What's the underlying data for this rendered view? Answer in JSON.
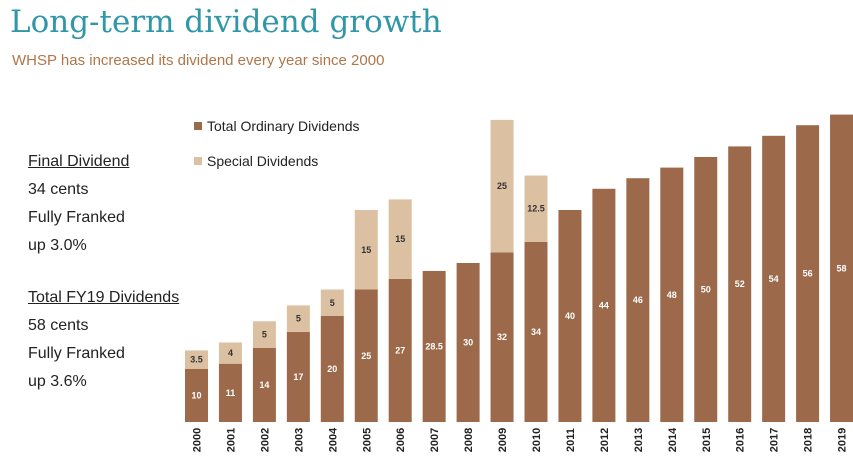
{
  "header": {
    "title": "Long-term dividend growth",
    "subtitle": "WHSP has increased its dividend every year since 2000"
  },
  "summary": {
    "final": {
      "heading": "Final Dividend",
      "lines": [
        "34 cents",
        "Fully Franked",
        "up 3.0%"
      ]
    },
    "total": {
      "heading": "Total FY19 Dividends",
      "lines": [
        "58 cents",
        "Fully Franked",
        "up 3.6%"
      ]
    }
  },
  "colors": {
    "ordinary": "#9c6a4a",
    "special": "#dcc0a2"
  },
  "chart_data": {
    "type": "bar",
    "stacked": true,
    "categories": [
      "2000",
      "2001",
      "2002",
      "2003",
      "2004",
      "2005",
      "2006",
      "2007",
      "2008",
      "2009",
      "2010",
      "2011",
      "2012",
      "2013",
      "2014",
      "2015",
      "2016",
      "2017",
      "2018",
      "2019"
    ],
    "series": [
      {
        "name": "Total Ordinary Dividends",
        "values": [
          10,
          11,
          14,
          17,
          20,
          25,
          27,
          28.5,
          30,
          32,
          34,
          40,
          44,
          46,
          48,
          50,
          52,
          54,
          56,
          58
        ]
      },
      {
        "name": "Special Dividends",
        "values": [
          3.5,
          4,
          5,
          5,
          5,
          15,
          15,
          0,
          0,
          25,
          12.5,
          0,
          0,
          0,
          0,
          0,
          0,
          0,
          0,
          0
        ]
      }
    ],
    "ylim": [
      0,
      60
    ],
    "legend": "top-left",
    "grid": false
  }
}
